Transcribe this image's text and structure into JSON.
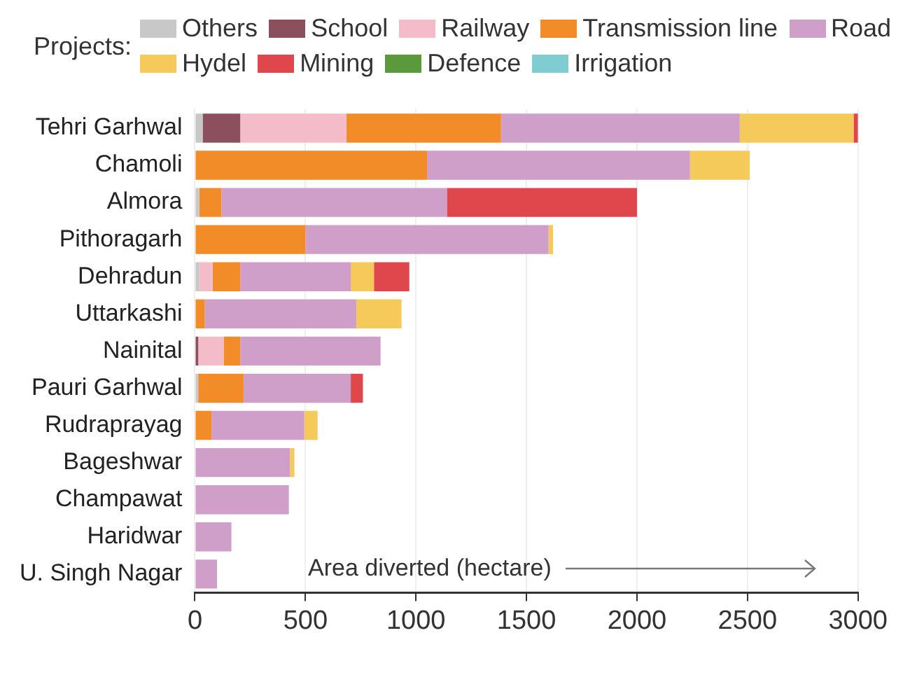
{
  "chart_data": {
    "type": "bar",
    "orientation": "horizontal",
    "stacked": true,
    "legend_title": "Projects:",
    "legend": "top",
    "xlabel": "Area diverted (hectare)",
    "grid": "x",
    "categories": [
      "Tehri Garhwal",
      "Chamoli",
      "Almora",
      "Pithoragarh",
      "Dehradun",
      "Uttarkashi",
      "Nainital",
      "Pauri Garhwal",
      "Rudraprayag",
      "Bageshwar",
      "Champawat",
      "Haridwar",
      "U. Singh Nagar"
    ],
    "xlim": [
      0,
      3000
    ],
    "xticks": [
      0,
      500,
      1000,
      1500,
      2000,
      2500,
      3000
    ],
    "series": [
      {
        "name": "Others",
        "color": "#c8c8c8",
        "values": [
          35,
          0,
          20,
          0,
          20,
          0,
          0,
          15,
          0,
          0,
          0,
          0,
          0
        ]
      },
      {
        "name": "School",
        "color": "#8c4f5e",
        "values": [
          170,
          0,
          0,
          0,
          0,
          0,
          15,
          0,
          0,
          0,
          0,
          0,
          0
        ]
      },
      {
        "name": "Railway",
        "color": "#f4bcc8",
        "values": [
          480,
          0,
          0,
          0,
          60,
          0,
          115,
          0,
          0,
          0,
          0,
          0,
          0
        ]
      },
      {
        "name": "Transmission line",
        "color": "#f28c28",
        "values": [
          700,
          1050,
          100,
          500,
          125,
          45,
          75,
          205,
          75,
          0,
          0,
          0,
          0
        ]
      },
      {
        "name": "Road",
        "color": "#cf9ec9",
        "values": [
          1080,
          1190,
          1020,
          1100,
          500,
          685,
          635,
          485,
          420,
          430,
          425,
          165,
          100
        ]
      },
      {
        "name": "Hydel",
        "color": "#f5c95a",
        "values": [
          515,
          270,
          0,
          20,
          105,
          205,
          0,
          0,
          60,
          20,
          0,
          0,
          0
        ]
      },
      {
        "name": "Mining",
        "color": "#e0474c",
        "values": [
          20,
          0,
          860,
          0,
          160,
          0,
          0,
          55,
          0,
          0,
          0,
          0,
          0
        ]
      },
      {
        "name": "Defence",
        "color": "#5a9a3c",
        "values": [
          0,
          0,
          0,
          0,
          0,
          0,
          0,
          0,
          0,
          0,
          0,
          0,
          0
        ]
      },
      {
        "name": "Irrigation",
        "color": "#7fcdd0",
        "values": [
          0,
          0,
          0,
          0,
          0,
          0,
          0,
          0,
          0,
          0,
          0,
          0,
          0
        ]
      }
    ]
  }
}
